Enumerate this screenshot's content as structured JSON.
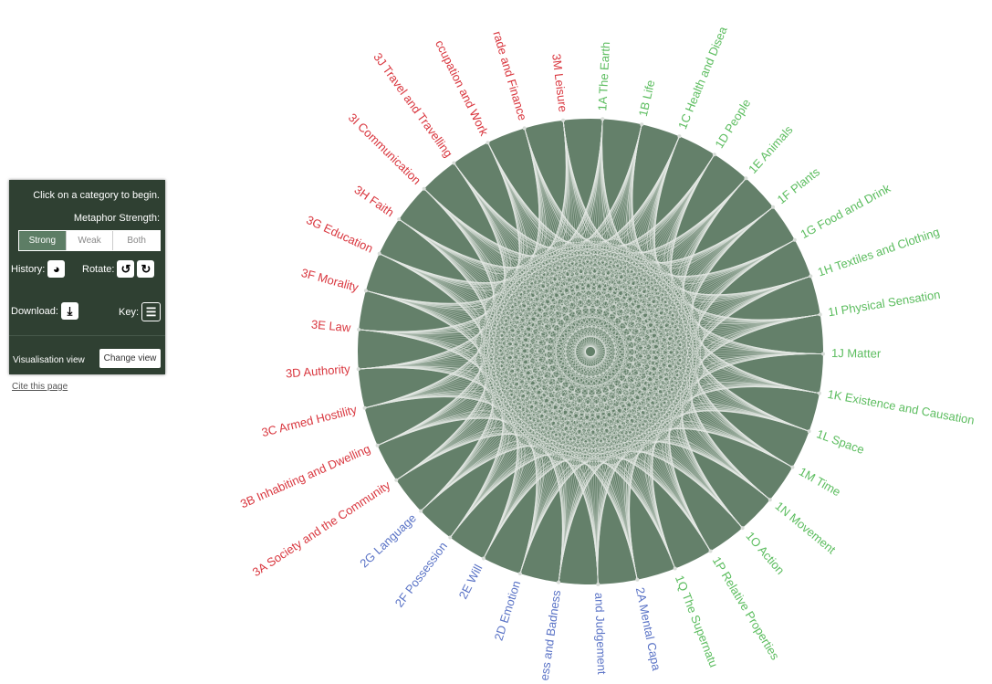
{
  "panel": {
    "instruction": "Click on a category to begin.",
    "strength_label": "Metaphor Strength:",
    "strength_options": [
      "Strong",
      "Weak",
      "Both"
    ],
    "history_label": "History:",
    "rotate_label": "Rotate:",
    "download_label": "Download:",
    "key_label": "Key:",
    "view_label": "Visualisation view",
    "change_view_label": "Change view"
  },
  "cite_link": "Cite this page",
  "colors": {
    "circle_fill": "#64806a",
    "link_stroke": "#e4e8e4",
    "group_1": "#5cbd5f",
    "group_2": "#5a73c6",
    "group_3": "#d9363e"
  },
  "categories": [
    {
      "label": "1A The Earth",
      "group": 1
    },
    {
      "label": "1B Life",
      "group": 1
    },
    {
      "label": "1C Health and Disea",
      "group": 1
    },
    {
      "label": "1D People",
      "group": 1
    },
    {
      "label": "1E Animals",
      "group": 1
    },
    {
      "label": "1F Plants",
      "group": 1
    },
    {
      "label": "1G Food and Drink",
      "group": 1
    },
    {
      "label": "1H Textiles and Clothing",
      "group": 1
    },
    {
      "label": "1I Physical Sensation",
      "group": 1
    },
    {
      "label": "1J Matter",
      "group": 1
    },
    {
      "label": "1K Existence and Causation",
      "group": 1
    },
    {
      "label": "1L Space",
      "group": 1
    },
    {
      "label": "1M Time",
      "group": 1
    },
    {
      "label": "1N Movement",
      "group": 1
    },
    {
      "label": "1O Action",
      "group": 1
    },
    {
      "label": "1P Relative Properties",
      "group": 1
    },
    {
      "label": "1Q The Supernatu",
      "group": 1
    },
    {
      "label": "2A Mental Capa",
      "group": 2
    },
    {
      "label": "and Judgement",
      "group": 2
    },
    {
      "label": "ess and Badness",
      "group": 2
    },
    {
      "label": "2D Emotion",
      "group": 2
    },
    {
      "label": "2E Will",
      "group": 2
    },
    {
      "label": "2F Possession",
      "group": 2
    },
    {
      "label": "2G Language",
      "group": 2
    },
    {
      "label": "3A Society and the Community",
      "group": 3
    },
    {
      "label": "3B Inhabiting and Dwelling",
      "group": 3
    },
    {
      "label": "3C Armed Hostility",
      "group": 3
    },
    {
      "label": "3D Authority",
      "group": 3
    },
    {
      "label": "3E Law",
      "group": 3
    },
    {
      "label": "3F Morality",
      "group": 3
    },
    {
      "label": "3G Education",
      "group": 3
    },
    {
      "label": "3H Faith",
      "group": 3
    },
    {
      "label": "3I Communication",
      "group": 3
    },
    {
      "label": "3J Travel and Travelling",
      "group": 3
    },
    {
      "label": "ccupation and Work",
      "group": 3
    },
    {
      "label": "rade and Finance",
      "group": 3
    },
    {
      "label": "3M Leisure",
      "group": 3
    }
  ]
}
